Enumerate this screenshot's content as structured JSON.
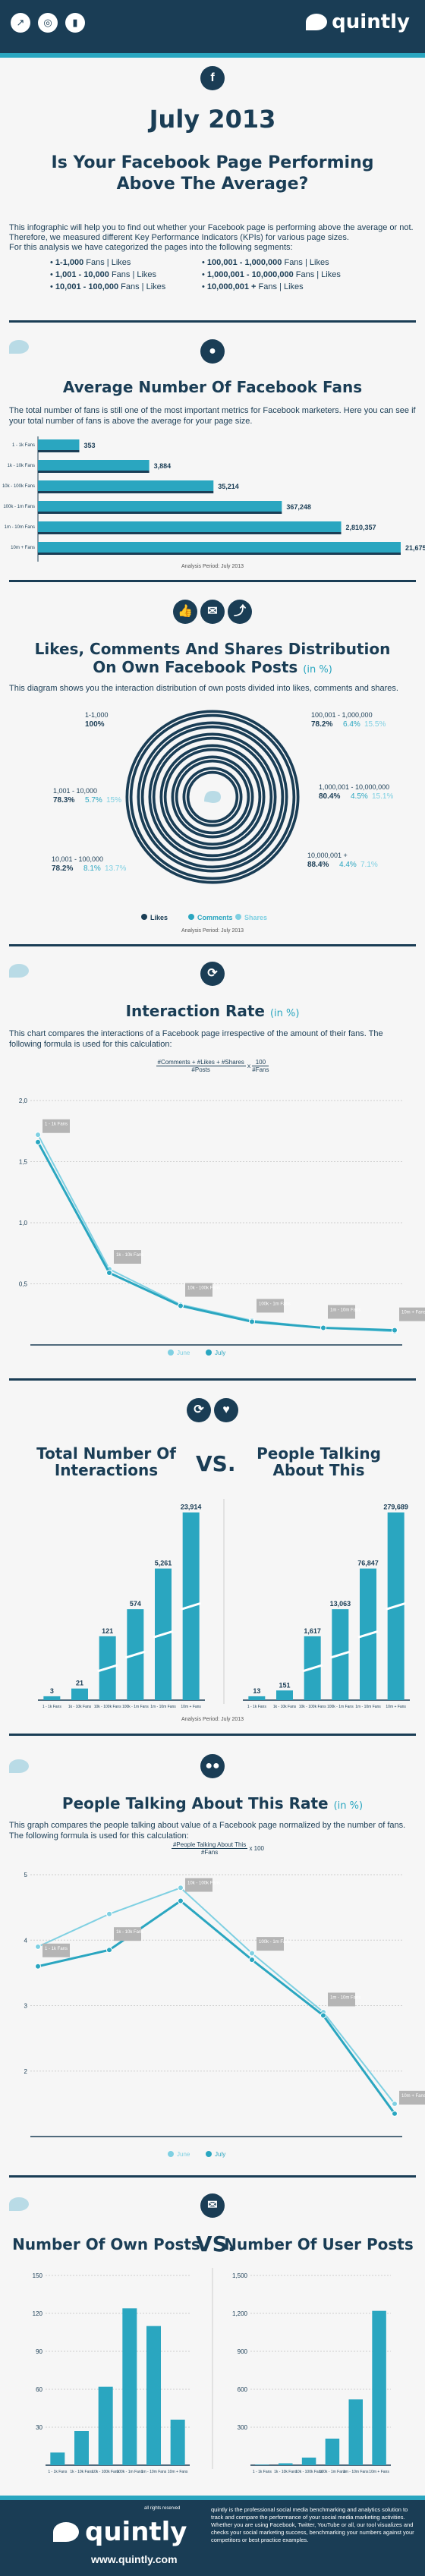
{
  "brand": {
    "name": "quintly",
    "url": "www.quintly.com",
    "rights": "all rights reserved",
    "about": "quintly is the professional social media benchmarking and analytics solution to track and compare the performance of your social media marketing activities. Whether you are using Facebook, Twitter, YouTube or all, our tool visualizes and checks your social marketing success, benchmarking your numbers against your competitors or best practice examples."
  },
  "header_icons": [
    "trend-icon",
    "globe-icon",
    "bars-icon"
  ],
  "intro": {
    "date_title": "July 2013",
    "headline_1": "Is Your Facebook Page Performing",
    "headline_2": "Above The Average?",
    "text_1": "This infographic will help you to find out whether your Facebook page is performing above the average or not.",
    "text_2": "Therefore, we measured different Key Performance Indicators (KPIs) for various page sizes.",
    "text_3": "For this analysis we have categorized the pages into the following segments:",
    "segments_left": [
      {
        "range": "1-1,000",
        "unit": "Fans | Likes"
      },
      {
        "range": "1,001 - 10,000",
        "unit": "Fans | Likes"
      },
      {
        "range": "10,001 - 100,000",
        "unit": "Fans | Likes"
      }
    ],
    "segments_right": [
      {
        "range": "100,001 - 1,000,000",
        "unit": "Fans | Likes"
      },
      {
        "range": "1,000,001 - 10,000,000",
        "unit": "Fans | Likes"
      },
      {
        "range": "10,000,001 +",
        "unit": "Fans | Likes"
      }
    ]
  },
  "fans_section": {
    "title": "Average Number Of Facebook Fans",
    "text": "The total number of fans is still one of the most important metrics for Facebook marketers. Here you can see if your total number of fans is above the average for your page size.",
    "period": "Analysis Period: July 2013"
  },
  "distribution_section": {
    "title_1": "Likes, Comments And Shares Distribution",
    "title_2": "On Own Facebook Posts",
    "unit": "(in %)",
    "text": "This diagram shows you the interaction distribution of own posts divided into likes, comments and shares.",
    "legend": [
      "Likes",
      "Comments",
      "Shares"
    ],
    "period": "Analysis Period: July 2013"
  },
  "interaction_section": {
    "title": "Interaction Rate",
    "unit": "(in %)",
    "text": "This chart compares the interactions of a Facebook page irrespective of the amount of their fans. The following formula is used for this calculation:",
    "formula_num": "#Comments + #Likes + #Shares",
    "formula_den": "#Posts",
    "formula_mult_num": "100",
    "formula_mult_den": "#Fans",
    "legend": [
      "June",
      "July"
    ]
  },
  "totals_section": {
    "title_left_1": "Total Number Of",
    "title_left_2": "Interactions",
    "vs": "VS.",
    "title_right_1": "People Talking",
    "title_right_2": "About This",
    "period": "Analysis Period: July 2013"
  },
  "ptat_section": {
    "title": "People Talking About This Rate",
    "unit": "(in %)",
    "text": "This graph compares the people talking about value of a Facebook page normalized by the number of fans. The following formula is used for this calculation:",
    "formula_num": "#People Talking About This",
    "formula_den": "#Fans",
    "formula_mult": "x 100",
    "legend": [
      "June",
      "July"
    ]
  },
  "posts_section": {
    "title_left": "Number Of Own Posts",
    "vs": "VS.",
    "title_right": "Number Of User Posts"
  },
  "colors": {
    "navy": "#1a3d55",
    "teal": "#2aa6c0",
    "light_teal": "#7fd0e2",
    "light_blue": "#b9dbe6"
  },
  "chart_data": [
    {
      "type": "bar",
      "orientation": "horizontal",
      "title": "Average Number Of Facebook Fans",
      "categories": [
        "1 - 1k Fans",
        "1k - 10k Fans",
        "10k - 100k Fans",
        "100k - 1m Fans",
        "1m - 10m Fans",
        "10m + Fans"
      ],
      "values": [
        353,
        3884,
        35214,
        367248,
        2810357,
        21675188
      ],
      "value_labels": [
        "353",
        "3,884",
        "35,214",
        "367,248",
        "2,810,357",
        "21,675,188"
      ]
    },
    {
      "type": "pie",
      "subtype": "concentric-rings",
      "title": "Likes, Comments And Shares Distribution On Own Facebook Posts (in %)",
      "series": [
        {
          "name": "1-1,000",
          "likes": 100,
          "comments": null,
          "shares": null,
          "label": "100%"
        },
        {
          "name": "1,001 - 10,000",
          "likes": 78.3,
          "comments": 5.7,
          "shares": 15,
          "label_likes": "78.3%",
          "label_comments": "5.7%",
          "label_shares": "15%"
        },
        {
          "name": "10,001 - 100,000",
          "likes": 78.2,
          "comments": 8.1,
          "shares": 13.7,
          "label_likes": "78.2%",
          "label_comments": "8.1%",
          "label_shares": "13.7%"
        },
        {
          "name": "100,001 - 1,000,000",
          "likes": 78.2,
          "comments": 6.4,
          "shares": 15.5,
          "label_likes": "78.2%",
          "label_comments": "6.4%",
          "label_shares": "15.5%"
        },
        {
          "name": "1,000,001 - 10,000,000",
          "likes": 80.4,
          "comments": 4.5,
          "shares": 15.1,
          "label_likes": "80.4%",
          "label_comments": "4.5%",
          "label_shares": "15.1%"
        },
        {
          "name": "10,000,001 +",
          "likes": 88.4,
          "comments": 4.4,
          "shares": 7.1,
          "label_likes": "88.4%",
          "label_comments": "4.4%",
          "label_shares": "7.1%"
        }
      ]
    },
    {
      "type": "line",
      "title": "Interaction Rate (in %)",
      "categories": [
        "1 - 1k Fans",
        "1k - 10k Fans",
        "10k - 100k Fans",
        "100k - 1m Fans",
        "1m - 10m Fans",
        "10m + Fans"
      ],
      "y_ticks": [
        "0,5",
        "1,0",
        "1,5",
        "2,0"
      ],
      "ylim": [
        0,
        2.0
      ],
      "series": [
        {
          "name": "June",
          "values": [
            1.72,
            0.62,
            0.33,
            0.2,
            0.14,
            0.11
          ]
        },
        {
          "name": "July",
          "values": [
            1.66,
            0.59,
            0.32,
            0.19,
            0.14,
            0.12
          ]
        }
      ]
    },
    {
      "type": "bar",
      "title": "Total Number Of Interactions",
      "categories": [
        "1 - 1k Fans",
        "1k - 10k Fans",
        "10k - 100k Fans",
        "100k - 1m Fans",
        "1m - 10m Fans",
        "10m + Fans"
      ],
      "values": [
        3,
        21,
        121,
        574,
        5261,
        23914
      ],
      "value_labels": [
        "3",
        "21",
        "121",
        "574",
        "5,261",
        "23,914"
      ]
    },
    {
      "type": "bar",
      "title": "People Talking About This",
      "categories": [
        "1 - 1k Fans",
        "1k - 10k Fans",
        "10k - 100k Fans",
        "100k - 1m Fans",
        "1m - 10m Fans",
        "10m + Fans"
      ],
      "values": [
        13,
        151,
        1617,
        13063,
        76847,
        279689
      ],
      "value_labels": [
        "13",
        "151",
        "1,617",
        "13,063",
        "76,847",
        "279,689"
      ]
    },
    {
      "type": "line",
      "title": "People Talking About This Rate (in %)",
      "categories": [
        "1 - 1k Fans",
        "1k - 10k Fans",
        "10k - 100k Fans",
        "100k - 1m Fans",
        "1m - 10m Fans",
        "10m + Fans"
      ],
      "y_ticks": [
        "2",
        "3",
        "4",
        "5"
      ],
      "ylim": [
        1,
        5
      ],
      "series": [
        {
          "name": "June",
          "values": [
            3.9,
            4.4,
            4.8,
            3.8,
            2.9,
            1.5
          ]
        },
        {
          "name": "July",
          "values": [
            3.6,
            3.85,
            4.6,
            3.7,
            2.85,
            1.35
          ]
        }
      ]
    },
    {
      "type": "bar",
      "title": "Number Of Own Posts",
      "categories": [
        "1 - 1k Fans",
        "1k - 10k Fans",
        "10k - 100k Fans",
        "100k - 1m Fans",
        "1m - 10m Fans",
        "10m + Fans"
      ],
      "y_ticks": [
        "30",
        "60",
        "90",
        "120",
        "150"
      ],
      "ylim": [
        0,
        150
      ],
      "values": [
        10,
        27,
        62,
        124,
        110,
        36
      ]
    },
    {
      "type": "bar",
      "title": "Number Of User Posts",
      "categories": [
        "1 - 1k Fans",
        "1k - 10k Fans",
        "10k - 100k Fans",
        "100k - 1m Fans",
        "1m - 10m Fans",
        "10m + Fans"
      ],
      "y_ticks": [
        "300",
        "600",
        "900",
        "1,200",
        "1,500"
      ],
      "ylim": [
        0,
        1500
      ],
      "values": [
        4,
        15,
        60,
        210,
        520,
        1220
      ]
    }
  ]
}
